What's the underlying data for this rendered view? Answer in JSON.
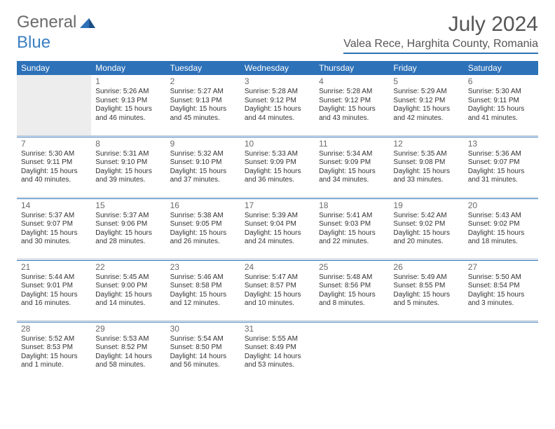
{
  "logo": {
    "text1": "General",
    "text2": "Blue"
  },
  "title": "July 2024",
  "location": "Valea Rece, Harghita County, Romania",
  "colors": {
    "header_bg": "#2d71b8",
    "header_text": "#ffffff",
    "rule_light": "#b9c5d0",
    "rule_dark": "#2d71b8",
    "lead_bg": "#ededed",
    "text": "#333333",
    "title_text": "#555555"
  },
  "day_headers": [
    "Sunday",
    "Monday",
    "Tuesday",
    "Wednesday",
    "Thursday",
    "Friday",
    "Saturday"
  ],
  "weeks": [
    [
      {
        "blank": true,
        "lead": true
      },
      {
        "n": "1",
        "sr": "5:26 AM",
        "ss": "9:13 PM",
        "dl": "15 hours and 46 minutes."
      },
      {
        "n": "2",
        "sr": "5:27 AM",
        "ss": "9:13 PM",
        "dl": "15 hours and 45 minutes."
      },
      {
        "n": "3",
        "sr": "5:28 AM",
        "ss": "9:12 PM",
        "dl": "15 hours and 44 minutes."
      },
      {
        "n": "4",
        "sr": "5:28 AM",
        "ss": "9:12 PM",
        "dl": "15 hours and 43 minutes."
      },
      {
        "n": "5",
        "sr": "5:29 AM",
        "ss": "9:12 PM",
        "dl": "15 hours and 42 minutes."
      },
      {
        "n": "6",
        "sr": "5:30 AM",
        "ss": "9:11 PM",
        "dl": "15 hours and 41 minutes."
      }
    ],
    [
      {
        "n": "7",
        "sr": "5:30 AM",
        "ss": "9:11 PM",
        "dl": "15 hours and 40 minutes."
      },
      {
        "n": "8",
        "sr": "5:31 AM",
        "ss": "9:10 PM",
        "dl": "15 hours and 39 minutes."
      },
      {
        "n": "9",
        "sr": "5:32 AM",
        "ss": "9:10 PM",
        "dl": "15 hours and 37 minutes."
      },
      {
        "n": "10",
        "sr": "5:33 AM",
        "ss": "9:09 PM",
        "dl": "15 hours and 36 minutes."
      },
      {
        "n": "11",
        "sr": "5:34 AM",
        "ss": "9:09 PM",
        "dl": "15 hours and 34 minutes."
      },
      {
        "n": "12",
        "sr": "5:35 AM",
        "ss": "9:08 PM",
        "dl": "15 hours and 33 minutes."
      },
      {
        "n": "13",
        "sr": "5:36 AM",
        "ss": "9:07 PM",
        "dl": "15 hours and 31 minutes."
      }
    ],
    [
      {
        "n": "14",
        "sr": "5:37 AM",
        "ss": "9:07 PM",
        "dl": "15 hours and 30 minutes."
      },
      {
        "n": "15",
        "sr": "5:37 AM",
        "ss": "9:06 PM",
        "dl": "15 hours and 28 minutes."
      },
      {
        "n": "16",
        "sr": "5:38 AM",
        "ss": "9:05 PM",
        "dl": "15 hours and 26 minutes."
      },
      {
        "n": "17",
        "sr": "5:39 AM",
        "ss": "9:04 PM",
        "dl": "15 hours and 24 minutes."
      },
      {
        "n": "18",
        "sr": "5:41 AM",
        "ss": "9:03 PM",
        "dl": "15 hours and 22 minutes."
      },
      {
        "n": "19",
        "sr": "5:42 AM",
        "ss": "9:02 PM",
        "dl": "15 hours and 20 minutes."
      },
      {
        "n": "20",
        "sr": "5:43 AM",
        "ss": "9:02 PM",
        "dl": "15 hours and 18 minutes."
      }
    ],
    [
      {
        "n": "21",
        "sr": "5:44 AM",
        "ss": "9:01 PM",
        "dl": "15 hours and 16 minutes."
      },
      {
        "n": "22",
        "sr": "5:45 AM",
        "ss": "9:00 PM",
        "dl": "15 hours and 14 minutes."
      },
      {
        "n": "23",
        "sr": "5:46 AM",
        "ss": "8:58 PM",
        "dl": "15 hours and 12 minutes."
      },
      {
        "n": "24",
        "sr": "5:47 AM",
        "ss": "8:57 PM",
        "dl": "15 hours and 10 minutes."
      },
      {
        "n": "25",
        "sr": "5:48 AM",
        "ss": "8:56 PM",
        "dl": "15 hours and 8 minutes."
      },
      {
        "n": "26",
        "sr": "5:49 AM",
        "ss": "8:55 PM",
        "dl": "15 hours and 5 minutes."
      },
      {
        "n": "27",
        "sr": "5:50 AM",
        "ss": "8:54 PM",
        "dl": "15 hours and 3 minutes."
      }
    ],
    [
      {
        "n": "28",
        "sr": "5:52 AM",
        "ss": "8:53 PM",
        "dl": "15 hours and 1 minute."
      },
      {
        "n": "29",
        "sr": "5:53 AM",
        "ss": "8:52 PM",
        "dl": "14 hours and 58 minutes."
      },
      {
        "n": "30",
        "sr": "5:54 AM",
        "ss": "8:50 PM",
        "dl": "14 hours and 56 minutes."
      },
      {
        "n": "31",
        "sr": "5:55 AM",
        "ss": "8:49 PM",
        "dl": "14 hours and 53 minutes."
      },
      {
        "blank": true
      },
      {
        "blank": true
      },
      {
        "blank": true
      }
    ]
  ],
  "labels": {
    "sunrise": "Sunrise: ",
    "sunset": "Sunset: ",
    "daylight": "Daylight: "
  }
}
